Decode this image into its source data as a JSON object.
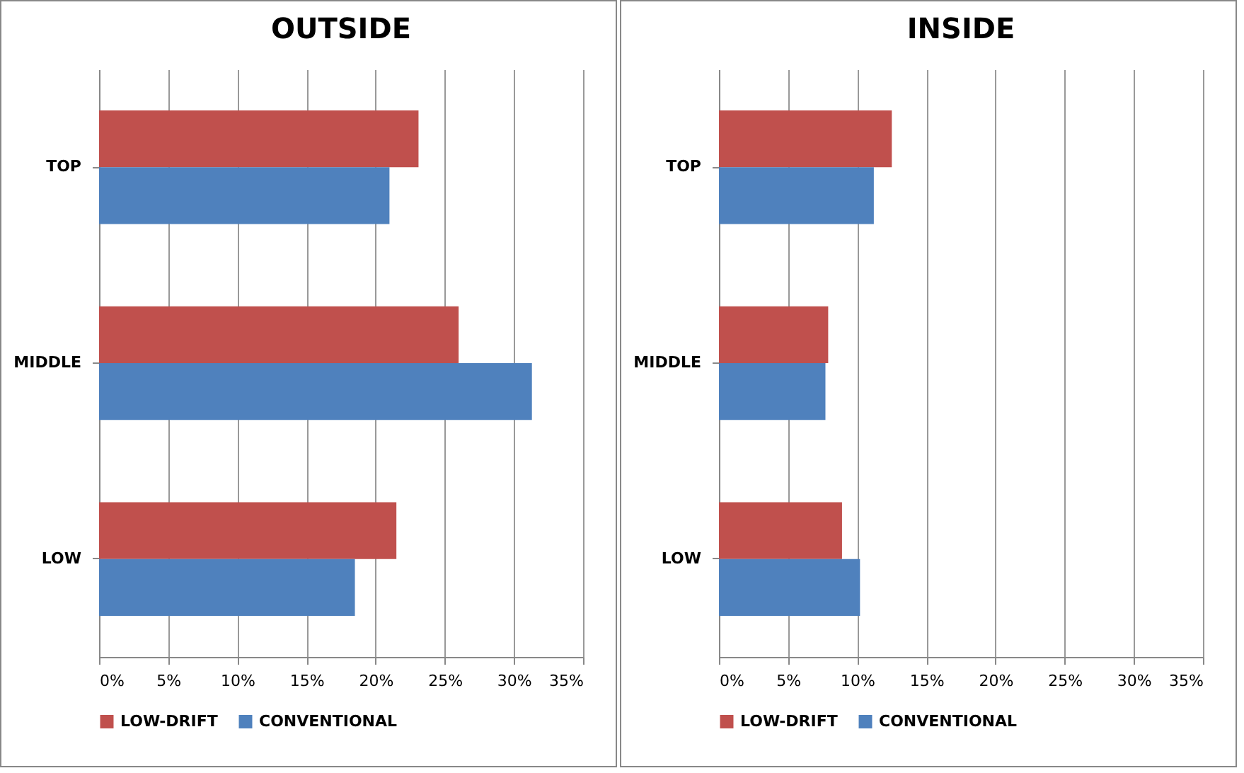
{
  "chart_data": [
    {
      "type": "bar",
      "orientation": "horizontal",
      "title": "OUTSIDE",
      "categories": [
        "TOP",
        "MIDDLE",
        "LOW"
      ],
      "series": [
        {
          "name": "LOW-DRIFT",
          "color": "#c0504d",
          "values": [
            23.1,
            26.0,
            21.5
          ]
        },
        {
          "name": "CONVENTIONAL",
          "color": "#4f81bd",
          "values": [
            21.0,
            31.3,
            18.5
          ]
        }
      ],
      "xlim": [
        0,
        35
      ],
      "xticks": [
        {
          "value": 0,
          "label": "0%"
        },
        {
          "value": 5,
          "label": "5%"
        },
        {
          "value": 10,
          "label": "10%"
        },
        {
          "value": 15,
          "label": "15%"
        },
        {
          "value": 20,
          "label": "20%"
        },
        {
          "value": 25,
          "label": "25%"
        },
        {
          "value": 30,
          "label": "30%"
        },
        {
          "value": 35,
          "label": "35%"
        }
      ],
      "grid": "x",
      "legend": "bottom"
    },
    {
      "type": "bar",
      "orientation": "horizontal",
      "title": "INSIDE",
      "categories": [
        "TOP",
        "MIDDLE",
        "LOW"
      ],
      "series": [
        {
          "name": "LOW-DRIFT",
          "color": "#c0504d",
          "values": [
            12.5,
            7.9,
            8.9
          ]
        },
        {
          "name": "CONVENTIONAL",
          "color": "#4f81bd",
          "values": [
            11.2,
            7.7,
            10.2
          ]
        }
      ],
      "xlim": [
        0,
        35
      ],
      "xticks": [
        {
          "value": 0,
          "label": "0%"
        },
        {
          "value": 5,
          "label": "5%"
        },
        {
          "value": 10,
          "label": "10%"
        },
        {
          "value": 15,
          "label": "15%"
        },
        {
          "value": 20,
          "label": "20%"
        },
        {
          "value": 25,
          "label": "25%"
        },
        {
          "value": 30,
          "label": "30%"
        },
        {
          "value": 35,
          "label": "35%"
        }
      ],
      "grid": "x",
      "legend": "bottom"
    }
  ]
}
